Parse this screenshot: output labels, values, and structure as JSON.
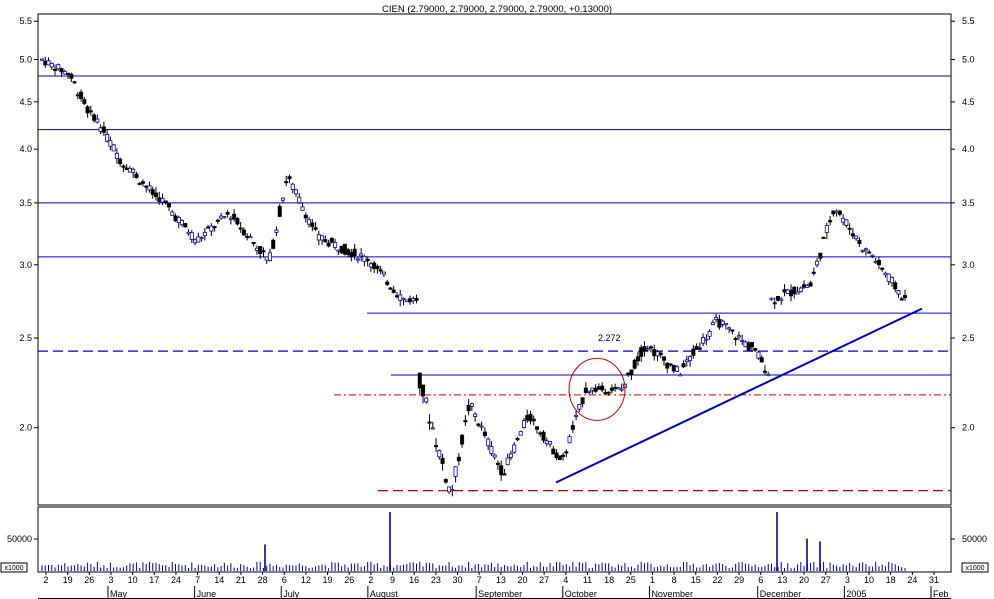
{
  "chart_data": {
    "type": "candlestick",
    "title": "CIEN (2.79000, 2.79000, 2.79000, 2.79000, +0.13000)",
    "scale": "log",
    "ylim": [
      1.65,
      5.6
    ],
    "price_ticks": [
      "5.5",
      "5.0",
      "4.5",
      "4.0",
      "3.5",
      "3.0",
      "2.5",
      "2.0"
    ],
    "volume_ticks": [
      "50000"
    ],
    "volume_unit": "x1000",
    "day_labels": [
      "2",
      "19",
      "26",
      "3",
      "10",
      "17",
      "24",
      "7",
      "14",
      "21",
      "28",
      "6",
      "12",
      "19",
      "26",
      "2",
      "9",
      "16",
      "23",
      "30",
      "7",
      "13",
      "20",
      "27",
      "4",
      "11",
      "18",
      "25",
      "1",
      "8",
      "15",
      "22",
      "29",
      "6",
      "13",
      "20",
      "27",
      "3",
      "10",
      "18",
      "24",
      "31"
    ],
    "month_labels": [
      "May",
      "June",
      "July",
      "August",
      "September",
      "October",
      "November",
      "December",
      "2005",
      "Feb"
    ],
    "annotation": "2.272",
    "colors": {
      "up": "#ffffff",
      "down": "#000000",
      "blue_lines": "#0000cc",
      "red_lines": "#cc0000"
    },
    "horizontal_lines": [
      {
        "price": 4.8,
        "style": "solid",
        "color": "blue"
      },
      {
        "price": 4.2,
        "style": "solid",
        "color": "blue"
      },
      {
        "price": 3.5,
        "style": "solid",
        "color": "blue"
      },
      {
        "price": 3.06,
        "style": "solid",
        "color": "blue"
      },
      {
        "price": 2.66,
        "style": "solid",
        "color": "blue"
      },
      {
        "price": 2.42,
        "style": "dashed",
        "color": "blue"
      },
      {
        "price": 2.28,
        "style": "solid",
        "color": "blue"
      },
      {
        "price": 2.17,
        "style": "dash-dot",
        "color": "red"
      },
      {
        "price": 1.71,
        "style": "dashed",
        "color": "red"
      }
    ],
    "trendline": {
      "from": {
        "date": "Sep 27",
        "price": 1.745
      },
      "to": {
        "date": "Jan 31",
        "price": 2.69
      }
    },
    "circle": {
      "date": "Oct 11",
      "price": 2.2
    },
    "segments": [
      {
        "start": 5.0,
        "end": 4.85,
        "n": 8,
        "vol": 0.25
      },
      {
        "start": 4.85,
        "end": 4.35,
        "n": 8,
        "vol": 0.3
      },
      {
        "start": 4.35,
        "end": 3.85,
        "n": 10,
        "vol": 0.3
      },
      {
        "start": 3.85,
        "end": 3.55,
        "n": 10,
        "vol": 0.3
      },
      {
        "start": 3.55,
        "end": 3.2,
        "n": 12,
        "vol": 0.3
      },
      {
        "start": 3.2,
        "end": 3.4,
        "n": 10,
        "vol": 0.25
      },
      {
        "start": 3.4,
        "end": 3.05,
        "n": 12,
        "vol": 0.3
      },
      {
        "start": 3.05,
        "end": 3.7,
        "n": 6,
        "vol": 0.35
      },
      {
        "start": 3.7,
        "end": 3.2,
        "n": 10,
        "vol": 0.3
      },
      {
        "start": 3.2,
        "end": 3.05,
        "n": 14,
        "vol": 0.3
      },
      {
        "start": 3.05,
        "end": 2.75,
        "n": 12,
        "vol": 0.3
      },
      {
        "start": 2.75,
        "end": 2.75,
        "n": 4,
        "vol": 0.2
      },
      {
        "start": 2.25,
        "end": 1.72,
        "n": 10,
        "vol": 0.45
      },
      {
        "start": 1.72,
        "end": 2.1,
        "n": 6,
        "vol": 0.35
      },
      {
        "start": 2.1,
        "end": 1.8,
        "n": 10,
        "vol": 0.3
      },
      {
        "start": 1.8,
        "end": 2.05,
        "n": 8,
        "vol": 0.3
      },
      {
        "start": 2.05,
        "end": 1.85,
        "n": 10,
        "vol": 0.25
      },
      {
        "start": 1.85,
        "end": 2.2,
        "n": 8,
        "vol": 0.3
      },
      {
        "start": 2.2,
        "end": 2.2,
        "n": 10,
        "vol": 0.2
      },
      {
        "start": 2.2,
        "end": 2.45,
        "n": 8,
        "vol": 0.3
      },
      {
        "start": 2.45,
        "end": 2.3,
        "n": 10,
        "vol": 0.3
      },
      {
        "start": 2.3,
        "end": 2.6,
        "n": 12,
        "vol": 0.3
      },
      {
        "start": 2.6,
        "end": 2.45,
        "n": 10,
        "vol": 0.3
      },
      {
        "start": 2.45,
        "end": 2.3,
        "n": 6,
        "vol": 0.3
      },
      {
        "start": 2.75,
        "end": 2.85,
        "n": 12,
        "vol": 0.3
      },
      {
        "start": 2.85,
        "end": 3.45,
        "n": 8,
        "vol": 0.35
      },
      {
        "start": 3.45,
        "end": 3.1,
        "n": 10,
        "vol": 0.3
      },
      {
        "start": 3.1,
        "end": 2.75,
        "n": 12,
        "vol": 0.3
      }
    ],
    "volume_spikes": [
      {
        "date": "Aug 2",
        "level": 1.0
      },
      {
        "date": "Dec 13",
        "level": 1.0
      },
      {
        "date": "Dec 20",
        "level": 0.55
      },
      {
        "date": "Jul 2",
        "level": 0.45
      },
      {
        "date": "Dec 29",
        "level": 0.5
      }
    ]
  }
}
